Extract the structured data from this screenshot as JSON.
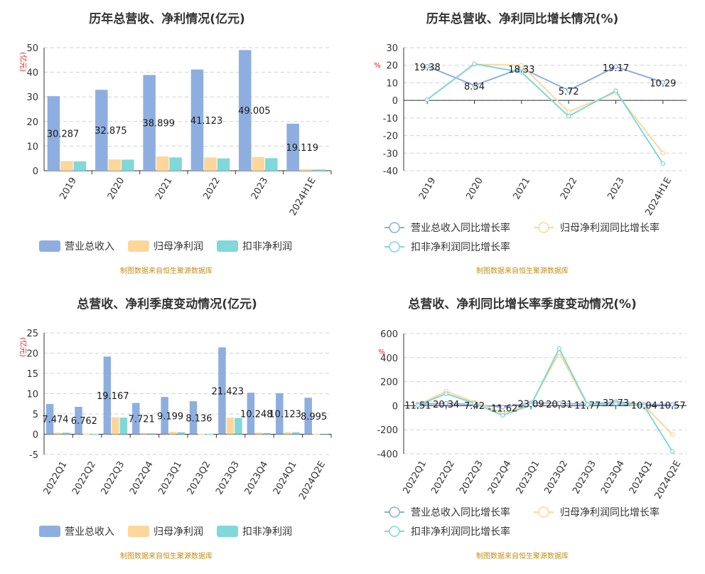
{
  "colors": {
    "revenue": "#8eaee0",
    "net_profit": "#fdd79a",
    "deducted_profit": "#80d8d8",
    "unit_red": "#e0201b",
    "source_gold": "#c0901a"
  },
  "source_note": "制图数据来自恒生聚源数据库",
  "chart_data": [
    {
      "type": "bar",
      "title": "历年总营收、净利情况(亿元)",
      "unit": "(亿元)",
      "categories": [
        "2019",
        "2020",
        "2021",
        "2022",
        "2023",
        "2024H1E"
      ],
      "ylim": [
        0,
        50
      ],
      "yticks": [
        0,
        10,
        20,
        30,
        40,
        50
      ],
      "grid": true,
      "series": [
        {
          "name": "营业总收入",
          "color": "#8eaee0",
          "values": [
            30.287,
            32.875,
            38.899,
            41.123,
            49.005,
            19.119
          ],
          "labels": [
            "30.287",
            "32.875",
            "38.899",
            "41.123",
            "49.005",
            "19.119"
          ]
        },
        {
          "name": "归母净利润",
          "color": "#fdd79a",
          "values": [
            3.9,
            4.6,
            5.8,
            5.4,
            5.6,
            0.6
          ]
        },
        {
          "name": "扣非净利润",
          "color": "#80d8d8",
          "values": [
            3.8,
            4.5,
            5.4,
            5.0,
            5.1,
            0.5
          ]
        }
      ],
      "legend": "bottom-left"
    },
    {
      "type": "line",
      "title": "历年总营收、净利同比增长情况(%)",
      "unit": "%",
      "categories": [
        "2019",
        "2020",
        "2021",
        "2022",
        "2023",
        "2024H1E"
      ],
      "ylim": [
        -40,
        30
      ],
      "yticks": [
        -40,
        -30,
        -20,
        -10,
        0,
        10,
        20,
        30
      ],
      "grid": true,
      "series": [
        {
          "name": "营业总收入同比增长率",
          "color": "#8eaee0",
          "values": [
            19.38,
            8.54,
            18.33,
            5.72,
            19.17,
            10.29
          ],
          "labels": [
            "19.38",
            "8.54",
            "18.33",
            "5.72",
            "19.17",
            "10.29"
          ]
        },
        {
          "name": "归母净利润同比增长率",
          "color": "#fdd79a",
          "values": [
            0.5,
            20.5,
            20.0,
            -6.5,
            4.5,
            -30.0
          ]
        },
        {
          "name": "扣非净利润同比增长率",
          "color": "#80d8d8",
          "values": [
            0.5,
            20.8,
            16.0,
            -9.0,
            5.5,
            -36.0
          ]
        }
      ],
      "legend": "bottom"
    },
    {
      "type": "bar",
      "title": "总营收、净利季度变动情况(亿元)",
      "unit": "(亿元)",
      "categories": [
        "2022Q1",
        "2022Q2",
        "2022Q3",
        "2022Q4",
        "2023Q1",
        "2023Q2",
        "2023Q3",
        "2023Q4",
        "2024Q1",
        "2024Q2E"
      ],
      "ylim": [
        -5,
        25
      ],
      "yticks": [
        -5,
        0,
        5,
        10,
        15,
        20,
        25
      ],
      "grid": true,
      "series": [
        {
          "name": "营业总收入",
          "color": "#8eaee0",
          "values": [
            7.474,
            6.762,
            19.167,
            7.721,
            9.199,
            8.136,
            21.423,
            10.248,
            10.123,
            8.995
          ],
          "labels": [
            "7.474",
            "6.762",
            "19.167",
            "7.721",
            "9.199",
            "8.136",
            "21.423",
            "10.248",
            "10.123",
            "8.995"
          ]
        },
        {
          "name": "归母净利润",
          "color": "#fdd79a",
          "values": [
            0.4,
            0.1,
            4.2,
            0.3,
            0.6,
            0.1,
            4.1,
            0.4,
            0.5,
            0.1
          ]
        },
        {
          "name": "扣非净利润",
          "color": "#80d8d8",
          "values": [
            0.4,
            0.1,
            4.1,
            0.2,
            0.5,
            0.1,
            4.0,
            0.3,
            0.5,
            0.0
          ]
        }
      ],
      "legend": "bottom-left"
    },
    {
      "type": "line",
      "title": "总营收、净利同比增长率季度变动情况(%)",
      "unit": "%",
      "categories": [
        "2022Q1",
        "2022Q2",
        "2022Q3",
        "2022Q4",
        "2023Q1",
        "2023Q2",
        "2023Q3",
        "2023Q4",
        "2024Q1",
        "2024Q2E"
      ],
      "ylim": [
        -400,
        600
      ],
      "yticks": [
        -400,
        -200,
        0,
        200,
        400,
        600
      ],
      "grid": true,
      "series": [
        {
          "name": "营业总收入同比增长率",
          "color": "#8eaee0",
          "values": [
            11.51,
            20.34,
            7.42,
            -11.62,
            23.09,
            20.31,
            11.77,
            32.73,
            10.04,
            10.57
          ],
          "labels": [
            "11.51",
            "20.34",
            "7.42",
            "-11.62",
            "23.09",
            "20.31",
            "11.77",
            "32.73",
            "10.04",
            "10.57"
          ]
        },
        {
          "name": "归母净利润同比增长率",
          "color": "#fdd79a",
          "values": [
            5,
            120,
            30,
            -60,
            10,
            440,
            5,
            20,
            0,
            -240
          ]
        },
        {
          "name": "扣非净利润同比增长率",
          "color": "#80d8d8",
          "values": [
            3,
            100,
            20,
            -80,
            5,
            475,
            10,
            15,
            -5,
            -380
          ]
        }
      ],
      "legend": "bottom"
    }
  ]
}
